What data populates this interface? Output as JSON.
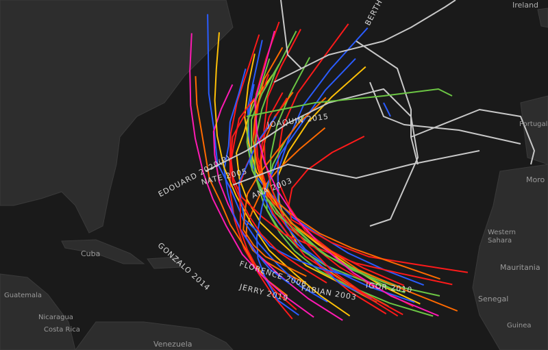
{
  "map": {
    "places": [
      "Cuba",
      "Guatemala",
      "Nicaragua",
      "Costa Rica",
      "Venezuela",
      "Western Sahara",
      "Mauritania",
      "Senegal",
      "Guinea",
      "Portugal",
      "Ireland",
      "Moro"
    ],
    "storm_labels": [
      "EDOUARD 2020(P)",
      "NATE 2005",
      "ANA 2003",
      "JOAQUIN 2015",
      "GONZALO 2014",
      "FLORENCE 2006",
      "FABIAN 2003",
      "JERRY 2019",
      "IGOR 2010",
      "BERTH"
    ],
    "colors": {
      "background": "#1a1a1a",
      "land": "#2d2d2d",
      "tropical_storm": "#2a5cff",
      "category_1": "#6cc644",
      "category_2": "#ffc107",
      "category_3": "#ff6a00",
      "category_4": "#ff1a1a",
      "category_5": "#ff1ab3",
      "extratropical": "#c8c8c8"
    }
  }
}
